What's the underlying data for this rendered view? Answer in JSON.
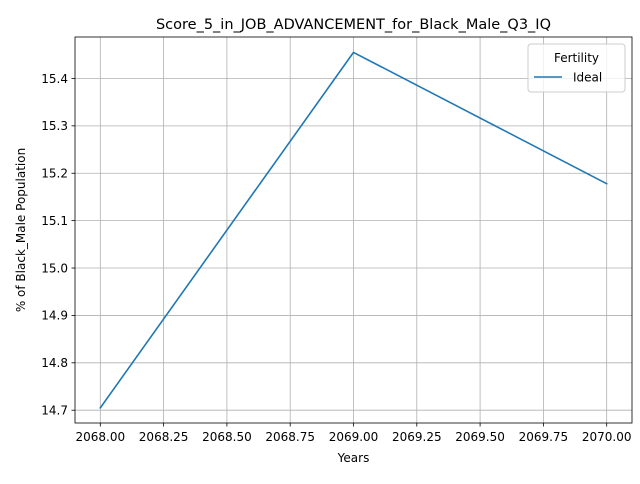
{
  "chart_data": {
    "type": "line",
    "title": "Score_5_in_JOB_ADVANCEMENT_for_Black_Male_Q3_IQ",
    "xlabel": "Years",
    "ylabel": "% of Black_Male Population",
    "xlim": [
      2067.9,
      2070.1
    ],
    "ylim": [
      14.673,
      15.4875
    ],
    "x_ticks": [
      2068.0,
      2068.25,
      2068.5,
      2068.75,
      2069.0,
      2069.25,
      2069.5,
      2069.75,
      2070.0
    ],
    "x_tick_labels": [
      "2068.00",
      "2068.25",
      "2068.50",
      "2068.75",
      "2069.00",
      "2069.25",
      "2069.50",
      "2069.75",
      "2070.00"
    ],
    "y_ticks": [
      14.7,
      14.8,
      14.9,
      15.0,
      15.1,
      15.2,
      15.3,
      15.4
    ],
    "y_tick_labels": [
      "14.7",
      "14.8",
      "14.9",
      "15.0",
      "15.1",
      "15.2",
      "15.3",
      "15.4"
    ],
    "grid": true,
    "legend": {
      "title": "Fertility",
      "position": "top-right"
    },
    "series": [
      {
        "name": "Ideal",
        "color": "#1f77b4",
        "x": [
          2068,
          2069,
          2070
        ],
        "y": [
          14.705,
          15.455,
          15.178
        ]
      }
    ]
  }
}
